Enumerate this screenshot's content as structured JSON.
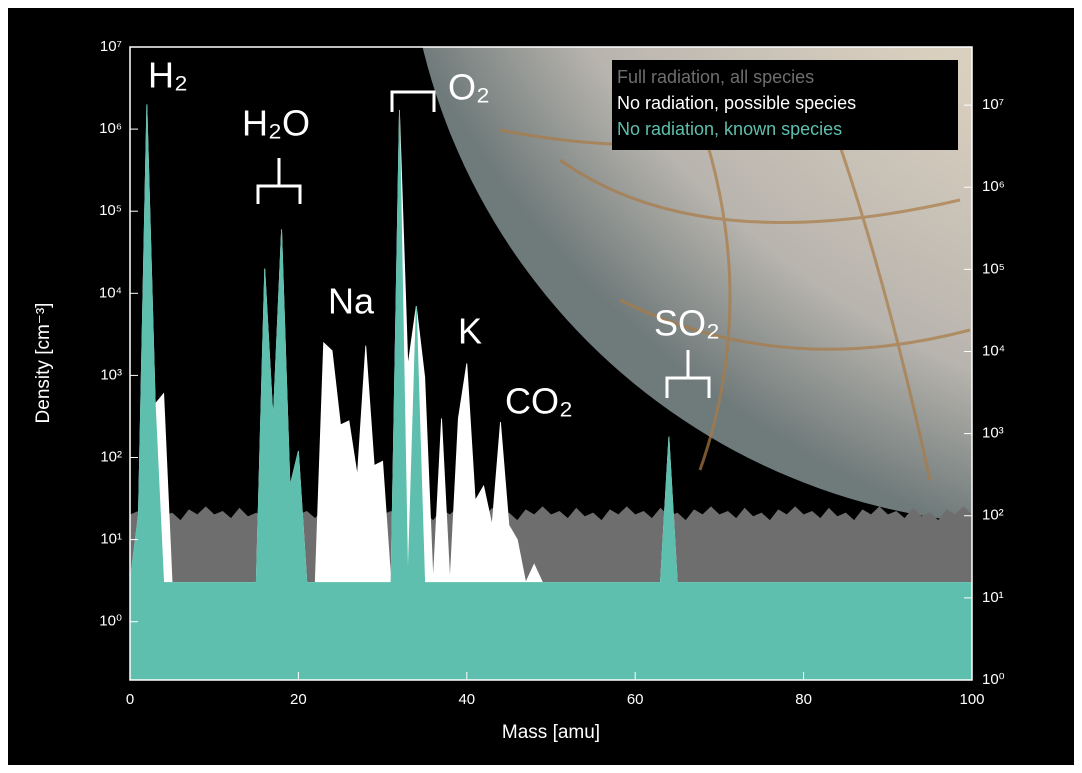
{
  "chart_data": {
    "type": "area",
    "x_label": "Mass [amu]",
    "y_label": "Density [cm⁻³]",
    "log_scale": true,
    "legend": "top-right",
    "x": [
      0,
      1,
      2,
      3,
      4,
      5,
      6,
      7,
      8,
      9,
      10,
      11,
      12,
      13,
      14,
      15,
      16,
      17,
      18,
      19,
      20,
      21,
      22,
      23,
      24,
      25,
      26,
      27,
      28,
      29,
      30,
      31,
      32,
      33,
      34,
      35,
      36,
      37,
      38,
      39,
      40,
      41,
      42,
      43,
      44,
      45,
      46,
      47,
      48,
      49,
      50,
      51,
      52,
      53,
      54,
      55,
      56,
      57,
      58,
      59,
      60,
      61,
      62,
      63,
      64,
      65,
      66,
      67,
      68,
      69,
      70,
      71,
      72,
      73,
      74,
      75,
      76,
      77,
      78,
      79,
      80,
      81,
      82,
      83,
      84,
      85,
      86,
      87,
      88,
      89,
      90,
      91,
      92,
      93,
      94,
      95,
      96,
      97,
      98,
      99,
      100
    ],
    "xlim": [
      0,
      100
    ],
    "xticks": [
      0,
      20,
      40,
      60,
      80,
      100
    ],
    "ylim": [
      0.195,
      10000000
    ],
    "yticks": [
      {
        "value": 1,
        "label": "10⁰"
      },
      {
        "value": 10,
        "label": "10¹"
      },
      {
        "value": 100,
        "label": "10²"
      },
      {
        "value": 1000,
        "label": "10³"
      },
      {
        "value": 10000,
        "label": "10⁴"
      },
      {
        "value": 100000,
        "label": "10⁵"
      },
      {
        "value": 1000000,
        "label": "10⁶"
      },
      {
        "value": 10000000,
        "label": "10⁷"
      }
    ],
    "y2lim": [
      1,
      51000000
    ],
    "y2ticks": [
      {
        "value": 1,
        "label": "10⁰"
      },
      {
        "value": 10,
        "label": "10¹"
      },
      {
        "value": 100,
        "label": "10²"
      },
      {
        "value": 1000,
        "label": "10³"
      },
      {
        "value": 10000,
        "label": "10⁴"
      },
      {
        "value": 100000,
        "label": "10⁵"
      },
      {
        "value": 1000000,
        "label": "10⁶"
      },
      {
        "value": 10000000,
        "label": "10⁷"
      }
    ],
    "series": [
      {
        "name": "Full radiation, all species",
        "color": "#6e6e6e",
        "values": [
          20,
          22,
          18,
          24,
          19,
          21,
          17,
          23,
          20,
          25,
          20,
          22,
          18,
          24,
          19,
          21,
          17,
          23,
          20,
          25,
          20,
          22,
          18,
          24,
          19,
          21,
          17,
          23,
          20,
          25,
          20,
          22,
          18,
          24,
          19,
          21,
          17,
          23,
          20,
          25,
          20,
          22,
          18,
          24,
          19,
          21,
          17,
          23,
          20,
          25,
          20,
          22,
          18,
          24,
          19,
          21,
          17,
          23,
          20,
          25,
          20,
          22,
          18,
          24,
          19,
          21,
          17,
          23,
          20,
          25,
          20,
          22,
          18,
          24,
          19,
          21,
          17,
          23,
          20,
          25,
          20,
          22,
          18,
          24,
          19,
          21,
          17,
          23,
          20,
          25,
          20,
          22,
          18,
          24,
          19,
          21,
          17,
          23,
          20,
          25,
          20
        ]
      },
      {
        "name": "No radiation, possible species",
        "color": "#ffffff",
        "values": [
          3,
          20,
          2000000,
          450,
          600,
          3,
          3,
          3,
          3,
          3,
          3,
          3,
          3,
          3,
          3,
          3,
          20000,
          280,
          60000,
          45,
          120,
          3,
          3,
          2500,
          2000,
          250,
          280,
          60,
          2300,
          80,
          90,
          3,
          1700000,
          1300,
          7000,
          950,
          3,
          300,
          3,
          300,
          1400,
          30,
          45,
          15,
          270,
          15,
          10,
          3,
          5,
          3,
          3,
          3,
          3,
          3,
          3,
          3,
          3,
          3,
          3,
          3,
          3,
          3,
          3,
          3,
          180,
          3,
          3,
          3,
          3,
          3,
          3,
          3,
          3,
          3,
          3,
          3,
          3,
          3,
          3,
          3,
          3,
          3,
          3,
          3,
          3,
          3,
          3,
          3,
          3,
          3,
          3,
          3,
          3,
          3,
          3,
          3,
          3,
          3,
          3,
          3,
          3
        ]
      },
      {
        "name": "No radiation, known species",
        "color": "#5fbfae",
        "values": [
          3,
          20,
          2000000,
          450,
          3,
          3,
          3,
          3,
          3,
          3,
          3,
          3,
          3,
          3,
          3,
          3,
          20000,
          280,
          60000,
          45,
          120,
          3,
          3,
          3,
          3,
          3,
          3,
          3,
          3,
          3,
          3,
          3,
          1700000,
          3,
          7000,
          3,
          3,
          3,
          3,
          3,
          3,
          3,
          3,
          3,
          3,
          3,
          3,
          3,
          3,
          3,
          3,
          3,
          3,
          3,
          3,
          3,
          3,
          3,
          3,
          3,
          3,
          3,
          3,
          3,
          180,
          3,
          3,
          3,
          3,
          3,
          3,
          3,
          3,
          3,
          3,
          3,
          3,
          3,
          3,
          3,
          3,
          3,
          3,
          3,
          3,
          3,
          3,
          3,
          3,
          3,
          3,
          3,
          3,
          3,
          3,
          3,
          3,
          3,
          3,
          3,
          3
        ]
      }
    ],
    "annotations": [
      "H₂",
      "H₂O",
      "O₂",
      "Na",
      "K",
      "CO₂",
      "SO₂"
    ]
  }
}
